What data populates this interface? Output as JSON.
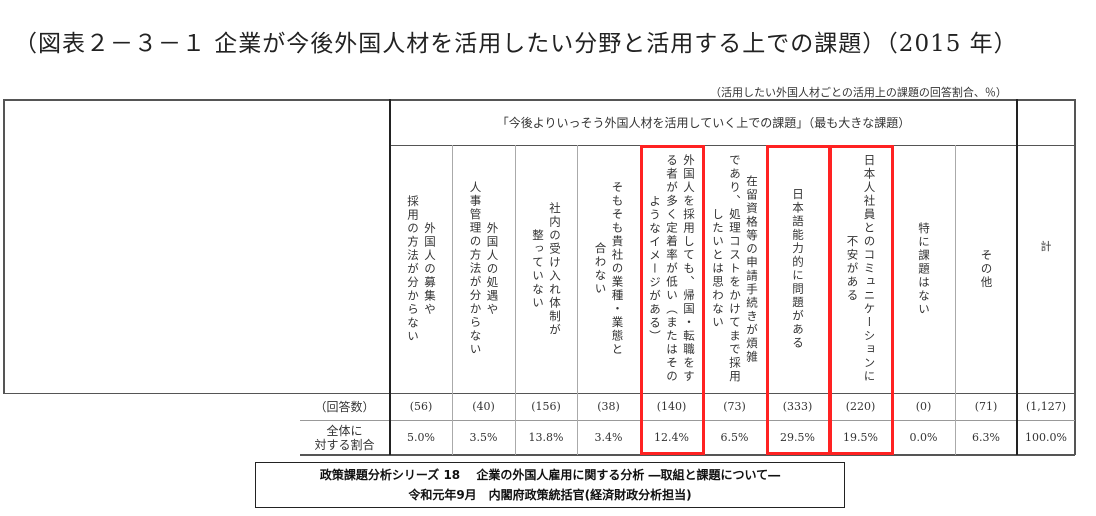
{
  "title": "（図表２－３－１ 企業が今後外国人材を活用したい分野と活用する上での課題）（2015 年）",
  "unit_note": "（活用したい外国人材ごとの活用上の課題の回答割合、％）",
  "group_header": "「今後よりいっそう外国人材を活用していく上での課題」（最も大きな課題）",
  "columns": [
    "外国人の募集や\n採用の方法が分からない",
    "外国人の処遇や\n人事管理の方法が分からない",
    "社内の受け入れ体制が\n整っていない",
    "そもそも貴社の業種・業態と\n合わない",
    "外国人を採用しても、帰国・転職をす\nる者が多く定着率が低い（またはその\nようなイメージがある）",
    "在留資格等の申請手続きが煩雑\nであり、処理コストをかけてまで採用\nしたいとは思わない",
    "日本語能力的に問題がある",
    "日本人社員とのコミュニケーションに\n不安がある",
    "特に課題はない",
    "その他",
    "計"
  ],
  "rows": [
    {
      "label": "（回答数）",
      "values": [
        "(56)",
        "(40)",
        "(156)",
        "(38)",
        "(140)",
        "(73)",
        "(333)",
        "(220)",
        "(0)",
        "(71)",
        "(1,127)"
      ]
    },
    {
      "label": "全体に\n対する割合",
      "values": [
        "5.0%",
        "3.5%",
        "13.8%",
        "3.4%",
        "12.4%",
        "6.5%",
        "29.5%",
        "19.5%",
        "0.0%",
        "6.3%",
        "100.0%"
      ]
    }
  ],
  "highlight_color": "#ff2222",
  "highlighted_columns": [
    4,
    6,
    7
  ],
  "footer": {
    "line1": "政策課題分析シリーズ 18　 企業の外国人雇用に関する分析 ―取組と課題について―",
    "line2": "令和元年9月　内閣府政策統括官(経済財政分析担当)"
  }
}
